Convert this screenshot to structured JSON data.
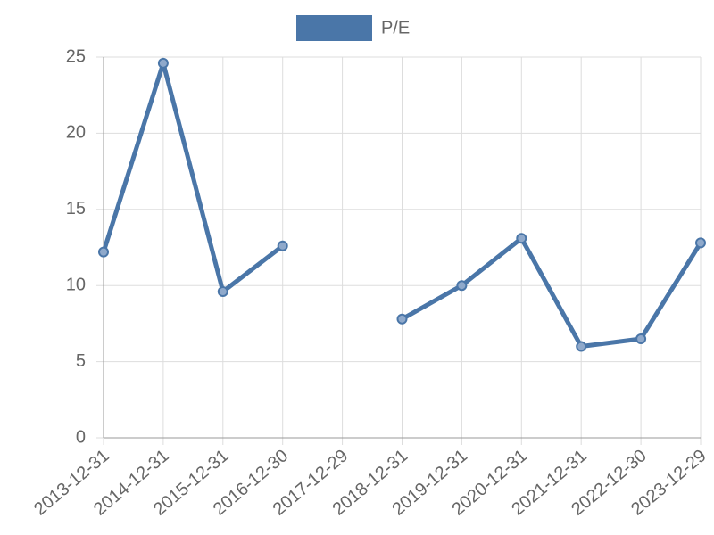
{
  "chart_data": {
    "type": "line",
    "categories": [
      "2013-12-31",
      "2014-12-31",
      "2015-12-31",
      "2016-12-30",
      "2017-12-29",
      "2018-12-31",
      "2019-12-31",
      "2020-12-31",
      "2021-12-31",
      "2022-12-30",
      "2023-12-29"
    ],
    "series": [
      {
        "name": "P/E",
        "color": "#4a76a8",
        "values": [
          12.2,
          24.6,
          9.6,
          12.6,
          null,
          7.8,
          10.0,
          13.1,
          6.0,
          6.5,
          12.8
        ]
      }
    ],
    "ylim": [
      0,
      25
    ],
    "yticks": [
      0,
      5,
      10,
      15,
      20,
      25
    ],
    "grid": true,
    "legend": "top"
  }
}
